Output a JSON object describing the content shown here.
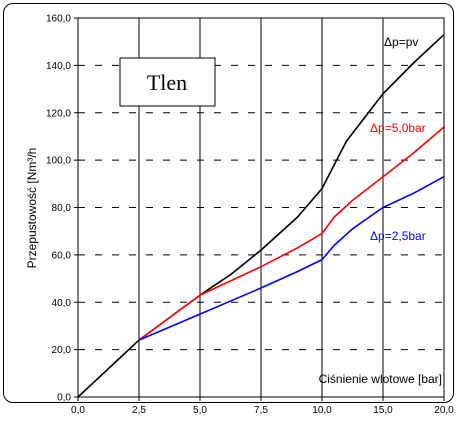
{
  "chart_data": {
    "type": "line",
    "title": "Tlen",
    "xlabel": "Ciśnienie wlotowe [bar]",
    "ylabel": "Przepustowość [Nm³/h",
    "xlim": [
      0,
      20
    ],
    "ylim": [
      0,
      160
    ],
    "grid": true,
    "x_ticks": [
      "0,0",
      "2,5",
      "5,0",
      "7,5",
      "10,0",
      "15,0",
      "20,0"
    ],
    "x_tick_values": [
      0,
      2.5,
      5,
      7.5,
      10,
      15,
      20
    ],
    "y_ticks": [
      "0,0",
      "20,0",
      "40,0",
      "60,0",
      "80,0",
      "100,0",
      "120,0",
      "140,0",
      "160,0"
    ],
    "y_tick_values": [
      0,
      20,
      40,
      60,
      80,
      100,
      120,
      140,
      160
    ],
    "series": [
      {
        "name": "Δp=pv",
        "color": "#000000",
        "x": [
          0,
          2.5,
          5,
          6.3,
          7.5,
          9,
          10,
          12,
          15,
          17.5,
          20
        ],
        "y": [
          0,
          24,
          43,
          52,
          62,
          76,
          88,
          108,
          128,
          141,
          153
        ]
      },
      {
        "name": "Δp=5,0bar",
        "color": "#ff0000",
        "x": [
          2.5,
          5,
          7.5,
          9,
          10,
          11,
          12.5,
          15,
          17.5,
          20
        ],
        "y": [
          24,
          43,
          55,
          63,
          69,
          76,
          83,
          93,
          103,
          114
        ]
      },
      {
        "name": "Δp=2,5bar",
        "color": "#0000ff",
        "x": [
          2.5,
          5,
          7.5,
          9,
          10,
          11,
          12.5,
          15,
          17.5,
          20
        ],
        "y": [
          24,
          35,
          46,
          53,
          58,
          64,
          71,
          80,
          86,
          93
        ]
      }
    ]
  }
}
